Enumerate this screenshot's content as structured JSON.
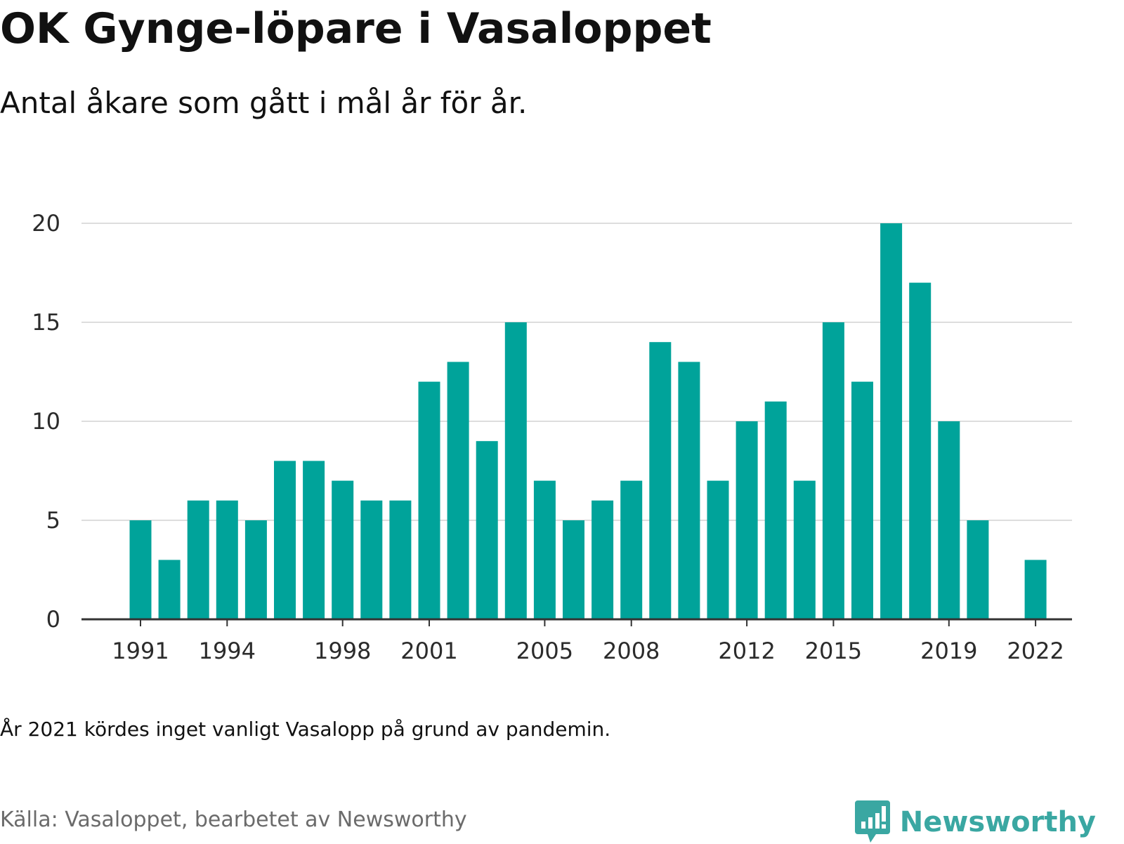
{
  "title": "OK Gynge-löpare i Vasaloppet",
  "subtitle": "Antal åkare som gått i mål år för år.",
  "note": "År 2021 kördes inget vanligt Vasalopp på grund av pandemin.",
  "source": "Källa: Vasaloppet, bearbetet av Newsworthy",
  "brand": {
    "name": "Newsworthy",
    "icon": "newsworthy-logo-icon"
  },
  "colors": {
    "bar": "#00a39a",
    "grid": "#dddddd",
    "axis": "#333333",
    "brand": "#3aa7a2"
  },
  "chart_data": {
    "type": "bar",
    "x": [
      1991,
      1992,
      1993,
      1994,
      1995,
      1996,
      1997,
      1998,
      1999,
      2000,
      2001,
      2002,
      2003,
      2004,
      2005,
      2006,
      2007,
      2008,
      2009,
      2010,
      2011,
      2012,
      2013,
      2014,
      2015,
      2016,
      2017,
      2018,
      2019,
      2020,
      2021,
      2022
    ],
    "values": [
      5,
      3,
      6,
      6,
      5,
      8,
      8,
      7,
      6,
      6,
      12,
      13,
      9,
      15,
      7,
      5,
      6,
      7,
      14,
      13,
      7,
      10,
      11,
      7,
      15,
      12,
      20,
      17,
      10,
      5,
      null,
      3
    ],
    "x_tick_labels": [
      "1991",
      "1994",
      "1998",
      "2001",
      "2005",
      "2008",
      "2012",
      "2015",
      "2019",
      "2022"
    ],
    "y_ticks": [
      0,
      5,
      10,
      15,
      20
    ],
    "ylim": [
      0,
      20
    ],
    "xlabel": "",
    "ylabel": "",
    "grid": true,
    "legend": "none"
  }
}
